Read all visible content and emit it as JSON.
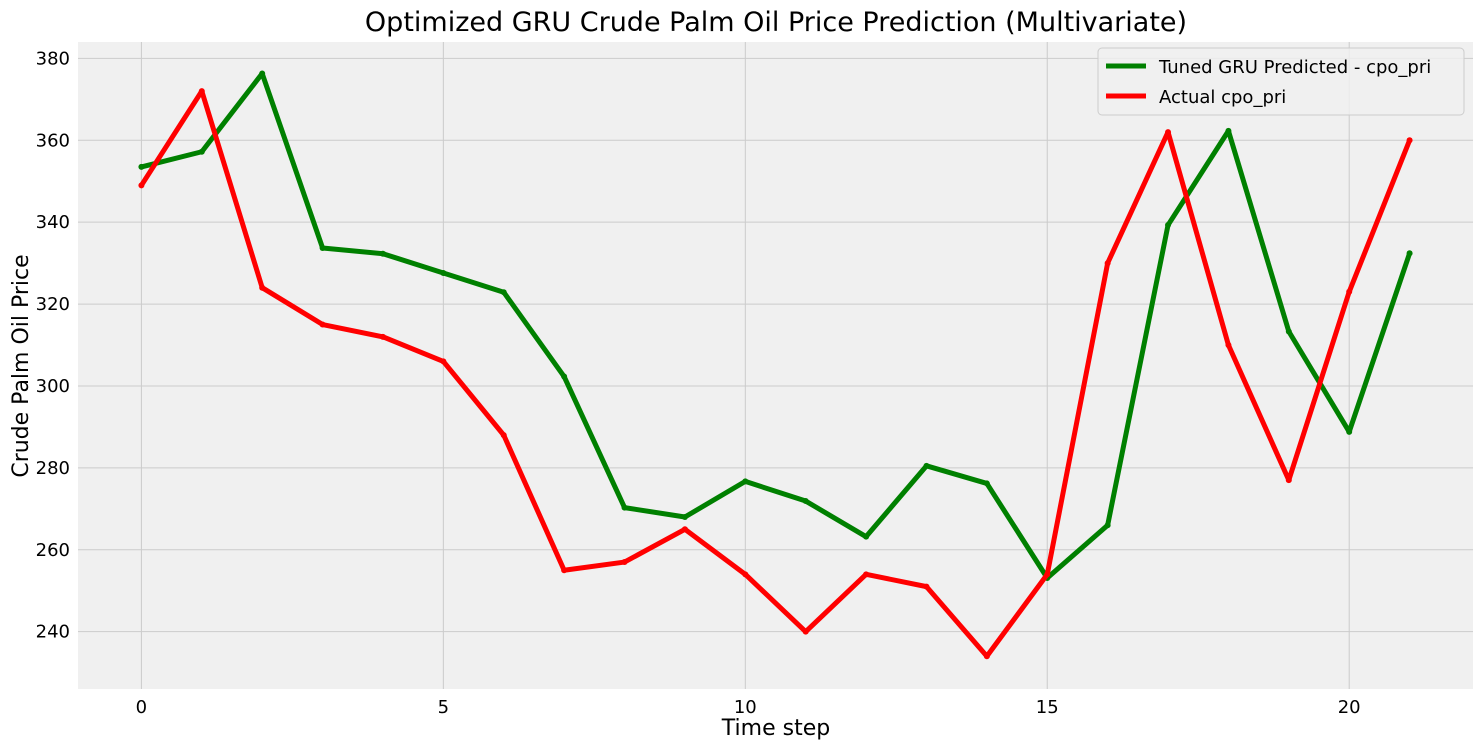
{
  "chart_data": {
    "type": "line",
    "title": "Optimized GRU Crude Palm Oil Price Prediction (Multivariate)",
    "xlabel": "Time step",
    "ylabel": "Crude Palm Oil Price",
    "xlim": [
      -1.05,
      22.05
    ],
    "ylim": [
      226,
      384
    ],
    "xticks": [
      0,
      5,
      10,
      15,
      20
    ],
    "yticks": [
      240,
      260,
      280,
      300,
      320,
      340,
      360,
      380
    ],
    "grid": true,
    "legend_position": "top-right",
    "x": [
      0,
      1,
      2,
      3,
      4,
      5,
      6,
      7,
      8,
      9,
      10,
      11,
      12,
      13,
      14,
      15,
      16,
      17,
      18,
      19,
      20,
      21
    ],
    "series": [
      {
        "name": "Tuned GRU Predicted - cpo_pri",
        "color": "#008000",
        "values": [
          353.5,
          357.2,
          376.3,
          333.7,
          332.3,
          327.6,
          322.9,
          302.3,
          270.3,
          268.0,
          276.7,
          271.9,
          263.2,
          280.5,
          276.2,
          253.1,
          266.0,
          339.3,
          362.3,
          313.3,
          288.8,
          332.4
        ]
      },
      {
        "name": "Actual cpo_pri",
        "color": "#ff0000",
        "values": [
          349.0,
          372.0,
          324.0,
          315.0,
          312.0,
          306.0,
          288.0,
          255.0,
          257.0,
          265.0,
          254.0,
          240.0,
          254.0,
          251.0,
          234.0,
          254.0,
          330.0,
          362.0,
          310.0,
          277.0,
          323.0,
          360.0
        ]
      }
    ],
    "background_color": "#f0f0f0",
    "grid_color": "#cbcbcb"
  }
}
